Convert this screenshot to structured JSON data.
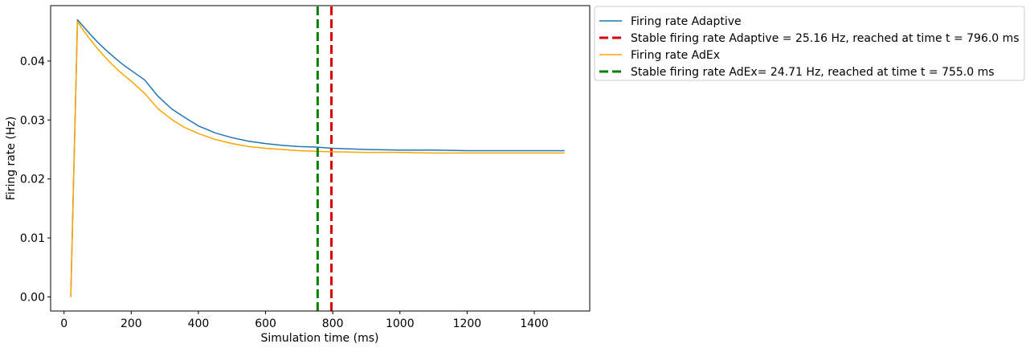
{
  "chart_data": {
    "type": "line",
    "xlabel": "Simulation time (ms)",
    "ylabel": "Firing rate (Hz)",
    "xlim": [
      -40,
      1565
    ],
    "ylim": [
      -0.0024,
      0.0494
    ],
    "x_ticks": [
      0,
      200,
      400,
      600,
      800,
      1000,
      1200,
      1400
    ],
    "x_tick_labels": [
      "0",
      "200",
      "400",
      "600",
      "800",
      "1000",
      "1200",
      "1400"
    ],
    "y_ticks": [
      0.0,
      0.01,
      0.02,
      0.03,
      0.04
    ],
    "y_tick_labels": [
      "0.00",
      "0.01",
      "0.02",
      "0.03",
      "0.04"
    ],
    "grid": false,
    "legend_position": "outside-top-right",
    "series": [
      {
        "name": "Firing rate Adaptive",
        "color": "#1f77b4",
        "style": "solid",
        "x": [
          20,
          40,
          60,
          80,
          100,
          120,
          140,
          160,
          180,
          200,
          240,
          280,
          320,
          360,
          400,
          450,
          500,
          550,
          600,
          650,
          700,
          750,
          800,
          900,
          1000,
          1100,
          1200,
          1300,
          1400,
          1490
        ],
        "y": [
          0.0,
          0.047,
          0.0457,
          0.0444,
          0.0432,
          0.0421,
          0.0411,
          0.0401,
          0.0392,
          0.0384,
          0.0368,
          0.034,
          0.0319,
          0.0304,
          0.029,
          0.0278,
          0.027,
          0.0264,
          0.026,
          0.0257,
          0.0255,
          0.0254,
          0.0252,
          0.025,
          0.0249,
          0.0249,
          0.0248,
          0.0248,
          0.0248,
          0.0248
        ]
      },
      {
        "name": "Stable firing rate Adaptive = 25.16 Hz, reached at time t = 796.0 ms",
        "color": "#dd0000",
        "style": "dashed",
        "x": [
          796,
          796
        ],
        "y": [
          -0.0024,
          0.0494
        ]
      },
      {
        "name": "Firing rate AdEx",
        "color": "#ffa500",
        "style": "solid",
        "x": [
          20,
          40,
          60,
          80,
          100,
          120,
          140,
          160,
          180,
          200,
          240,
          280,
          320,
          360,
          400,
          450,
          500,
          550,
          600,
          650,
          700,
          750,
          800,
          900,
          1000,
          1100,
          1200,
          1300,
          1400,
          1490
        ],
        "y": [
          0.0,
          0.0467,
          0.045,
          0.0435,
          0.0421,
          0.0408,
          0.0396,
          0.0385,
          0.0375,
          0.0366,
          0.0345,
          0.0319,
          0.0301,
          0.0287,
          0.0277,
          0.0267,
          0.026,
          0.0255,
          0.0252,
          0.025,
          0.0248,
          0.0247,
          0.0246,
          0.0245,
          0.0245,
          0.0244,
          0.0244,
          0.0244,
          0.0244,
          0.0244
        ]
      },
      {
        "name": "Stable firing rate AdEx= 24.71 Hz, reached at time t = 755.0 ms",
        "color": "#008000",
        "style": "dashed",
        "x": [
          755,
          755
        ],
        "y": [
          -0.0024,
          0.0494
        ]
      }
    ]
  }
}
